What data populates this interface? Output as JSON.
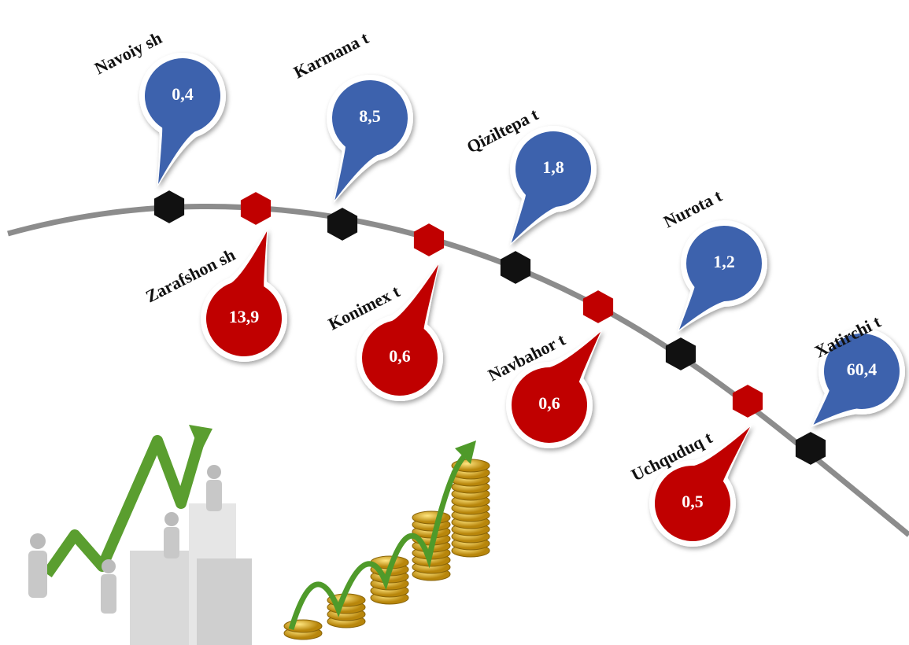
{
  "nodes": [
    {
      "label": "Navoiy sh",
      "value": "0,4"
    },
    {
      "label": "Zarafshon sh",
      "value": "13,9"
    },
    {
      "label": "Karmana t",
      "value": "8,5"
    },
    {
      "label": "Konimex t",
      "value": "0,6"
    },
    {
      "label": "Qiziltepa  t",
      "value": "1,8"
    },
    {
      "label": "Navbahor t",
      "value": "0,6"
    },
    {
      "label": "Nurota t",
      "value": "1,2"
    },
    {
      "label": "Uchquduq t",
      "value": "0,5"
    },
    {
      "label": "Xatirchi t",
      "value": "60,4"
    }
  ]
}
